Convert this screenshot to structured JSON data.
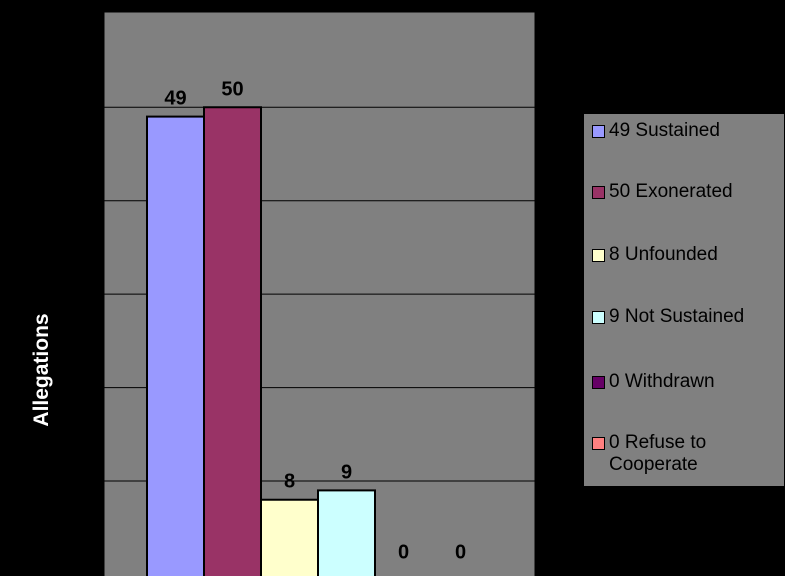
{
  "chart_data": {
    "type": "bar",
    "ylabel": "Allegations",
    "categories": [
      "49 Sustained",
      "50 Exonerated",
      "8 Unfounded",
      "9 Not Sustained",
      "0 Withdrawn",
      "0 Refuse to Cooperate"
    ],
    "values": [
      49,
      50,
      8,
      9,
      0,
      0
    ],
    "data_labels": [
      "49",
      "50",
      "8",
      "9",
      "0",
      "0"
    ],
    "colors": [
      "#9999FF",
      "#993366",
      "#FFFFCC",
      "#CCFFFF",
      "#660066",
      "#FF8080"
    ],
    "ylim": [
      0,
      60
    ],
    "grid": true,
    "legend_position": "right"
  }
}
